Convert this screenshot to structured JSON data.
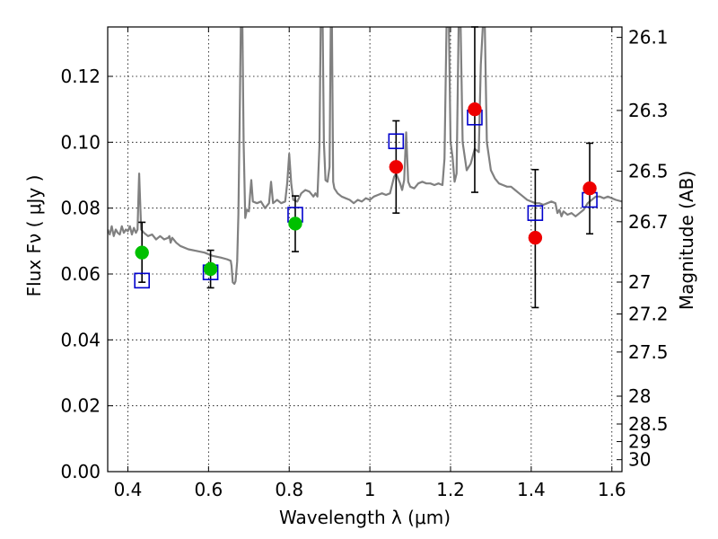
{
  "chart_data": {
    "type": "scatter",
    "title": "",
    "xlabel": "Wavelength  λ (μm)",
    "ylabel": "Flux  Fν ( μJy )",
    "ylabel_right": "Magnitude (AB)",
    "xlim": [
      0.35,
      1.625
    ],
    "ylim": [
      0.0,
      0.135
    ],
    "grid": true,
    "grid_style": "dotted",
    "x_ticks": [
      "0.4",
      "0.6",
      "0.8",
      "1",
      "1.2",
      "1.4",
      "1.6"
    ],
    "y_ticks": [
      "0.00",
      "0.02",
      "0.04",
      "0.06",
      "0.08",
      "0.10",
      "0.12"
    ],
    "right_ticks": [
      "26.1",
      "26.3",
      "26.5",
      "26.7",
      "27",
      "27.2",
      "27.5",
      "28",
      "28.5",
      "29",
      "30"
    ],
    "colors": {
      "spectrum": "#808080",
      "model": "#0000cc",
      "green_points": "#00c000",
      "red_points": "#ee0000",
      "errorbar": "#000000"
    },
    "model_points": [
      {
        "x": 0.435,
        "y": 0.058
      },
      {
        "x": 0.605,
        "y": 0.0605
      },
      {
        "x": 0.815,
        "y": 0.078
      },
      {
        "x": 1.065,
        "y": 0.1003
      },
      {
        "x": 1.26,
        "y": 0.1075
      },
      {
        "x": 1.41,
        "y": 0.0785
      },
      {
        "x": 1.545,
        "y": 0.0825
      }
    ],
    "observed_points": [
      {
        "x": 0.435,
        "y": 0.0665,
        "yerr_low": 0.0575,
        "yerr_high": 0.0757,
        "color": "green"
      },
      {
        "x": 0.605,
        "y": 0.0615,
        "yerr_low": 0.0558,
        "yerr_high": 0.0672,
        "color": "green"
      },
      {
        "x": 0.815,
        "y": 0.0753,
        "yerr_low": 0.0668,
        "yerr_high": 0.0837,
        "color": "green"
      },
      {
        "x": 1.065,
        "y": 0.0925,
        "yerr_low": 0.0785,
        "yerr_high": 0.1065,
        "color": "red"
      },
      {
        "x": 1.26,
        "y": 0.11,
        "yerr_low": 0.0848,
        "yerr_high": 0.135,
        "color": "red"
      },
      {
        "x": 1.41,
        "y": 0.071,
        "yerr_low": 0.0498,
        "yerr_high": 0.0917,
        "color": "red"
      },
      {
        "x": 1.545,
        "y": 0.086,
        "yerr_low": 0.0722,
        "yerr_high": 0.0997,
        "color": "red"
      }
    ],
    "spectrum": [
      [
        0.35,
        0.0735
      ],
      [
        0.355,
        0.072
      ],
      [
        0.36,
        0.0745
      ],
      [
        0.365,
        0.0715
      ],
      [
        0.37,
        0.0735
      ],
      [
        0.375,
        0.0725
      ],
      [
        0.38,
        0.072
      ],
      [
        0.385,
        0.0745
      ],
      [
        0.39,
        0.0725
      ],
      [
        0.395,
        0.0735
      ],
      [
        0.4,
        0.073
      ],
      [
        0.405,
        0.0745
      ],
      [
        0.41,
        0.072
      ],
      [
        0.415,
        0.074
      ],
      [
        0.42,
        0.0725
      ],
      [
        0.424,
        0.0735
      ],
      [
        0.426,
        0.0825
      ],
      [
        0.428,
        0.0905
      ],
      [
        0.43,
        0.0835
      ],
      [
        0.433,
        0.0735
      ],
      [
        0.44,
        0.0725
      ],
      [
        0.45,
        0.0715
      ],
      [
        0.46,
        0.072
      ],
      [
        0.47,
        0.0705
      ],
      [
        0.48,
        0.0715
      ],
      [
        0.49,
        0.0705
      ],
      [
        0.5,
        0.071
      ],
      [
        0.503,
        0.0715
      ],
      [
        0.506,
        0.0695
      ],
      [
        0.51,
        0.071
      ],
      [
        0.52,
        0.0695
      ],
      [
        0.53,
        0.0685
      ],
      [
        0.55,
        0.0675
      ],
      [
        0.57,
        0.067
      ],
      [
        0.59,
        0.0665
      ],
      [
        0.61,
        0.0655
      ],
      [
        0.63,
        0.065
      ],
      [
        0.645,
        0.0645
      ],
      [
        0.655,
        0.064
      ],
      [
        0.657,
        0.0625
      ],
      [
        0.66,
        0.0575
      ],
      [
        0.664,
        0.057
      ],
      [
        0.667,
        0.0578
      ],
      [
        0.671,
        0.0638
      ],
      [
        0.674,
        0.078
      ],
      [
        0.677,
        0.105
      ],
      [
        0.68,
        0.135
      ],
      [
        0.684,
        0.135
      ],
      [
        0.687,
        0.1
      ],
      [
        0.691,
        0.077
      ],
      [
        0.695,
        0.0795
      ],
      [
        0.7,
        0.079
      ],
      [
        0.703,
        0.084
      ],
      [
        0.706,
        0.0885
      ],
      [
        0.71,
        0.082
      ],
      [
        0.72,
        0.0815
      ],
      [
        0.73,
        0.082
      ],
      [
        0.74,
        0.08
      ],
      [
        0.75,
        0.0815
      ],
      [
        0.755,
        0.088
      ],
      [
        0.76,
        0.0815
      ],
      [
        0.77,
        0.0825
      ],
      [
        0.78,
        0.0815
      ],
      [
        0.79,
        0.082
      ],
      [
        0.795,
        0.0875
      ],
      [
        0.8,
        0.0965
      ],
      [
        0.805,
        0.0875
      ],
      [
        0.81,
        0.0825
      ],
      [
        0.82,
        0.082
      ],
      [
        0.83,
        0.0845
      ],
      [
        0.84,
        0.0855
      ],
      [
        0.85,
        0.085
      ],
      [
        0.86,
        0.0835
      ],
      [
        0.865,
        0.0845
      ],
      [
        0.87,
        0.0835
      ],
      [
        0.875,
        0.099
      ],
      [
        0.878,
        0.135
      ],
      [
        0.883,
        0.135
      ],
      [
        0.886,
        0.1
      ],
      [
        0.89,
        0.0885
      ],
      [
        0.895,
        0.088
      ],
      [
        0.9,
        0.0925
      ],
      [
        0.903,
        0.135
      ],
      [
        0.906,
        0.135
      ],
      [
        0.909,
        0.088
      ],
      [
        0.912,
        0.086
      ],
      [
        0.92,
        0.0845
      ],
      [
        0.93,
        0.0835
      ],
      [
        0.94,
        0.083
      ],
      [
        0.95,
        0.0825
      ],
      [
        0.96,
        0.0815
      ],
      [
        0.97,
        0.0825
      ],
      [
        0.98,
        0.082
      ],
      [
        0.99,
        0.083
      ],
      [
        1.0,
        0.0825
      ],
      [
        1.01,
        0.0835
      ],
      [
        1.02,
        0.084
      ],
      [
        1.03,
        0.0845
      ],
      [
        1.04,
        0.084
      ],
      [
        1.05,
        0.0845
      ],
      [
        1.055,
        0.087
      ],
      [
        1.06,
        0.0895
      ],
      [
        1.065,
        0.0905
      ],
      [
        1.07,
        0.089
      ],
      [
        1.075,
        0.0875
      ],
      [
        1.08,
        0.0855
      ],
      [
        1.085,
        0.0885
      ],
      [
        1.09,
        0.103
      ],
      [
        1.095,
        0.088
      ],
      [
        1.1,
        0.0865
      ],
      [
        1.11,
        0.086
      ],
      [
        1.12,
        0.0875
      ],
      [
        1.13,
        0.088
      ],
      [
        1.14,
        0.0875
      ],
      [
        1.15,
        0.0875
      ],
      [
        1.16,
        0.087
      ],
      [
        1.17,
        0.0875
      ],
      [
        1.18,
        0.087
      ],
      [
        1.185,
        0.095
      ],
      [
        1.19,
        0.135
      ],
      [
        1.196,
        0.135
      ],
      [
        1.2,
        0.1
      ],
      [
        1.205,
        0.0955
      ],
      [
        1.21,
        0.088
      ],
      [
        1.215,
        0.0905
      ],
      [
        1.22,
        0.135
      ],
      [
        1.225,
        0.135
      ],
      [
        1.23,
        0.1
      ],
      [
        1.24,
        0.0915
      ],
      [
        1.25,
        0.0935
      ],
      [
        1.26,
        0.098
      ],
      [
        1.27,
        0.097
      ],
      [
        1.275,
        0.1235
      ],
      [
        1.28,
        0.135
      ],
      [
        1.285,
        0.135
      ],
      [
        1.29,
        0.1
      ],
      [
        1.3,
        0.0915
      ],
      [
        1.31,
        0.089
      ],
      [
        1.32,
        0.0875
      ],
      [
        1.33,
        0.087
      ],
      [
        1.34,
        0.0865
      ],
      [
        1.35,
        0.0865
      ],
      [
        1.36,
        0.0855
      ],
      [
        1.37,
        0.0845
      ],
      [
        1.38,
        0.0835
      ],
      [
        1.39,
        0.0825
      ],
      [
        1.4,
        0.082
      ],
      [
        1.41,
        0.0815
      ],
      [
        1.42,
        0.0815
      ],
      [
        1.43,
        0.081
      ],
      [
        1.44,
        0.0815
      ],
      [
        1.45,
        0.082
      ],
      [
        1.46,
        0.0815
      ],
      [
        1.465,
        0.0785
      ],
      [
        1.47,
        0.0795
      ],
      [
        1.475,
        0.0775
      ],
      [
        1.48,
        0.079
      ],
      [
        1.49,
        0.078
      ],
      [
        1.5,
        0.0785
      ],
      [
        1.51,
        0.0775
      ],
      [
        1.52,
        0.0785
      ],
      [
        1.53,
        0.0795
      ],
      [
        1.54,
        0.0815
      ],
      [
        1.55,
        0.0825
      ],
      [
        1.56,
        0.0835
      ],
      [
        1.57,
        0.0835
      ],
      [
        1.58,
        0.083
      ],
      [
        1.59,
        0.0835
      ],
      [
        1.6,
        0.083
      ],
      [
        1.61,
        0.0825
      ],
      [
        1.625,
        0.082
      ]
    ]
  }
}
